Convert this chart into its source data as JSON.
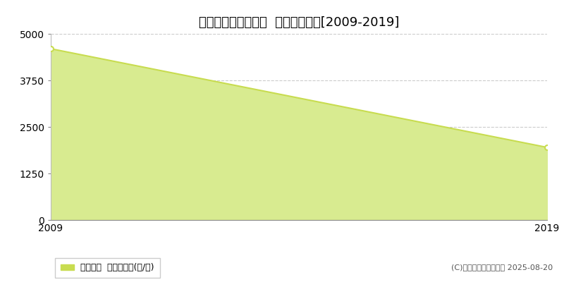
{
  "title": "朝来市山東町喜多垣  林地価格推移[2009-2019]",
  "x_values": [
    2009,
    2019
  ],
  "y_values": [
    4600,
    1950
  ],
  "ylim": [
    0,
    5000
  ],
  "xlim": [
    2009,
    2019
  ],
  "yticks": [
    0,
    1250,
    2500,
    3750,
    5000
  ],
  "xticks": [
    2009,
    2019
  ],
  "line_color": "#c8dc50",
  "fill_color": "#d8eb90",
  "marker_color": "#c8dc50",
  "background_color": "#ffffff",
  "plot_bg_color": "#ffffff",
  "grid_color": "#aaaaaa",
  "legend_label": "林地価格  平均坪単価(円/坪)",
  "copyright_text": "(C)土地価格ドットコム 2025-08-20",
  "title_fontsize": 13,
  "tick_fontsize": 10,
  "legend_fontsize": 9,
  "copyright_fontsize": 8
}
